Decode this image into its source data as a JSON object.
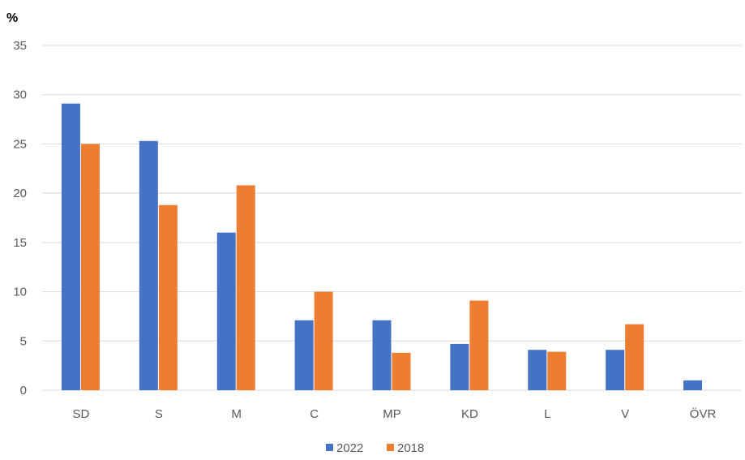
{
  "chart_data": {
    "type": "bar",
    "ylabel": "%",
    "ylim": [
      0,
      35
    ],
    "yticks": [
      "0",
      "5",
      "10",
      "15",
      "20",
      "25",
      "30",
      "35"
    ],
    "grid": true,
    "legend_position": "bottom",
    "categories": [
      "SD",
      "S",
      "M",
      "C",
      "MP",
      "KD",
      "L",
      "V",
      "ÖVR"
    ],
    "series": [
      {
        "name": "2022",
        "color": "#4472c4",
        "values": [
          29.1,
          25.3,
          16.0,
          7.1,
          7.1,
          4.7,
          4.1,
          4.1,
          1.0
        ]
      },
      {
        "name": "2018",
        "color": "#ed7d31",
        "values": [
          25.0,
          18.8,
          20.8,
          10.0,
          3.8,
          9.1,
          3.9,
          6.7,
          null
        ]
      }
    ]
  }
}
